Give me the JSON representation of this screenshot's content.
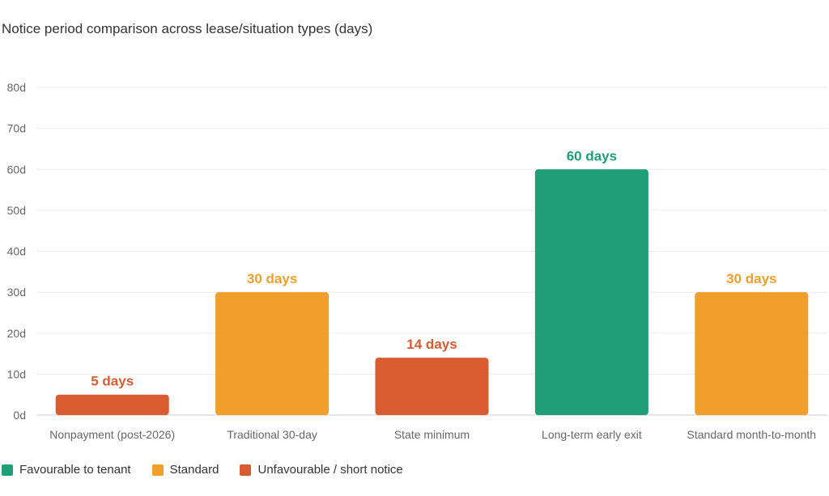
{
  "chart_data": {
    "type": "bar",
    "title": "Notice period comparison across lease/situation types (days)",
    "categories": [
      "Nonpayment (post-2026)",
      "Traditional 30-day",
      "State minimum",
      "Long-term early exit",
      "Standard month-to-month"
    ],
    "values": [
      5,
      30,
      14,
      60,
      30
    ],
    "value_labels": [
      "5 days",
      "30 days",
      "14 days",
      "60 days",
      "30 days"
    ],
    "bar_groups": [
      "unfavourable",
      "standard",
      "unfavourable",
      "favourable",
      "standard"
    ],
    "ylim": [
      0,
      80
    ],
    "yticks": [
      0,
      10,
      20,
      30,
      40,
      50,
      60,
      70,
      80
    ],
    "ytick_labels": [
      "0d",
      "10d",
      "20d",
      "30d",
      "40d",
      "50d",
      "60d",
      "70d",
      "80d"
    ],
    "xlabel": "",
    "ylabel": "",
    "grid": true,
    "legend_position": "bottom-left",
    "legend": [
      {
        "key": "favourable",
        "label": "Favourable to tenant",
        "color": "#1f9e77"
      },
      {
        "key": "standard",
        "label": "Standard",
        "color": "#f0a02a"
      },
      {
        "key": "unfavourable",
        "label": "Unfavourable / short notice",
        "color": "#d95b30"
      }
    ]
  }
}
